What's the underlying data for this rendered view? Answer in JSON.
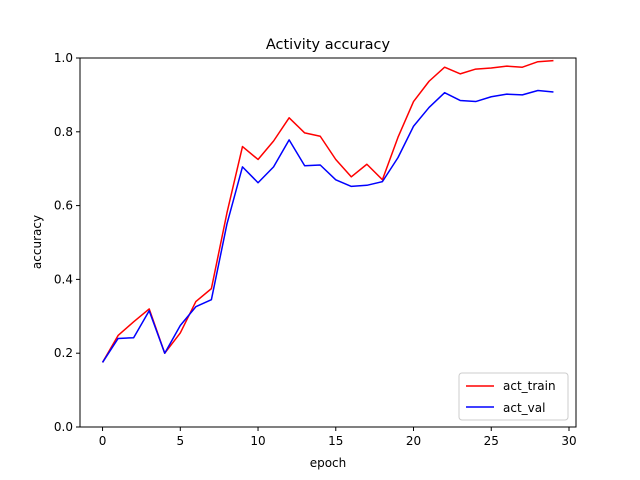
{
  "chart_data": {
    "type": "line",
    "title": "Activity accuracy",
    "xlabel": "epoch",
    "ylabel": "accuracy",
    "xlim": [
      -1.45,
      30.45
    ],
    "ylim": [
      0.0,
      1.0
    ],
    "xticks": [
      0,
      5,
      10,
      15,
      20,
      25,
      30
    ],
    "yticks": [
      0.0,
      0.2,
      0.4,
      0.6,
      0.8,
      1.0
    ],
    "xtick_labels": [
      "0",
      "5",
      "10",
      "15",
      "20",
      "25",
      "30"
    ],
    "ytick_labels": [
      "0.0",
      "0.2",
      "0.4",
      "0.6",
      "0.8",
      "1.0"
    ],
    "grid": false,
    "legend_position": "lower-right",
    "x": [
      0,
      1,
      2,
      3,
      4,
      5,
      6,
      7,
      8,
      9,
      10,
      11,
      12,
      13,
      14,
      15,
      16,
      17,
      18,
      19,
      20,
      21,
      22,
      23,
      24,
      25,
      26,
      27,
      28,
      29
    ],
    "series": [
      {
        "name": "act_train",
        "color": "#ff0000",
        "values": [
          0.175,
          0.248,
          0.285,
          0.32,
          0.2,
          0.255,
          0.34,
          0.375,
          0.58,
          0.76,
          0.725,
          0.775,
          0.838,
          0.797,
          0.788,
          0.725,
          0.678,
          0.712,
          0.67,
          0.785,
          0.882,
          0.937,
          0.975,
          0.957,
          0.97,
          0.973,
          0.978,
          0.975,
          0.99,
          0.993
        ]
      },
      {
        "name": "act_val",
        "color": "#0000ff",
        "values": [
          0.175,
          0.24,
          0.242,
          0.315,
          0.2,
          0.275,
          0.326,
          0.345,
          0.55,
          0.705,
          0.662,
          0.705,
          0.778,
          0.708,
          0.71,
          0.67,
          0.652,
          0.655,
          0.665,
          0.73,
          0.815,
          0.866,
          0.906,
          0.885,
          0.882,
          0.895,
          0.902,
          0.9,
          0.912,
          0.908
        ]
      }
    ]
  }
}
